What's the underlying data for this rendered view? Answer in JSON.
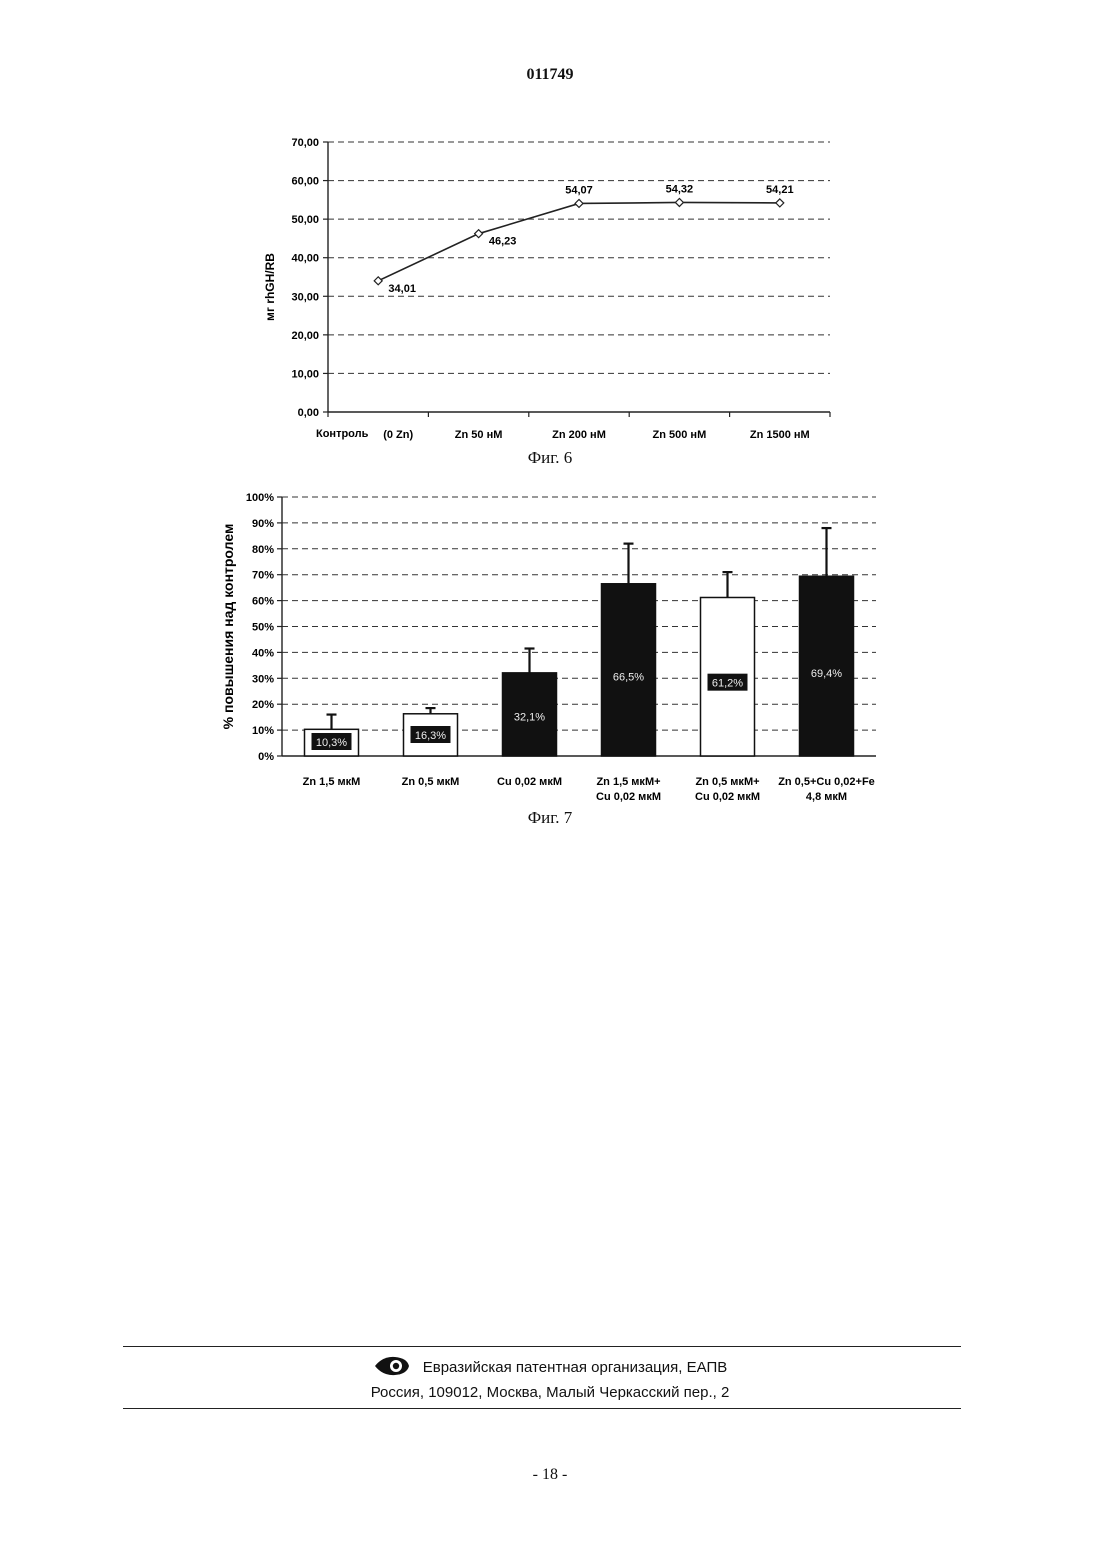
{
  "header": {
    "doc_number": "011749"
  },
  "chart_data": [
    {
      "type": "line",
      "caption": "Фиг. 6",
      "ylabel": "мг rhGH/RB",
      "ylim": [
        0,
        70
      ],
      "yticks": [
        "0,00",
        "10,00",
        "20,00",
        "30,00",
        "40,00",
        "50,00",
        "60,00",
        "70,00"
      ],
      "categories": [
        "Контроль (0 Zn)",
        "Zn 50 нМ",
        "Zn 200 нМ",
        "Zn 500 нМ",
        "Zn 1500 нМ"
      ],
      "category_labels": [
        "Контроль",
        "(0 Zn)",
        "Zn 50 нМ",
        "Zn 200 нМ",
        "Zn 500 нМ",
        "Zn 1500 нМ"
      ],
      "values": [
        34.01,
        46.23,
        54.07,
        54.32,
        54.21
      ],
      "data_labels": [
        "34,01",
        "46,23",
        "54,07",
        "54,32",
        "54,21"
      ],
      "grid": true,
      "color": "#222222"
    },
    {
      "type": "bar",
      "caption": "Фиг. 7",
      "ylabel": "% повышения над контролем",
      "ylim": [
        0,
        100
      ],
      "yticks": [
        "0%",
        "10%",
        "20%",
        "30%",
        "40%",
        "50%",
        "60%",
        "70%",
        "80%",
        "90%",
        "100%"
      ],
      "categories": [
        "Zn 1,5 мкМ",
        "Zn 0,5 мкМ",
        "Cu 0,02 мкМ",
        "Zn 1,5 мкМ+ Cu 0,02 мкМ",
        "Zn 0,5 мкМ+ Cu 0,02 мкМ",
        "Zn 0,5+Cu 0,02+Fe 4,8 мкМ"
      ],
      "category_lines": [
        [
          "Zn 1,5 мкМ"
        ],
        [
          "Zn 0,5 мкМ"
        ],
        [
          "Cu 0,02 мкМ"
        ],
        [
          "Zn 1,5 мкМ+",
          "Cu 0,02 мкМ"
        ],
        [
          "Zn 0,5 мкМ+",
          "Cu 0,02 мкМ"
        ],
        [
          "Zn 0,5+Cu 0,02+Fe",
          "4,8 мкМ"
        ]
      ],
      "values": [
        10.3,
        16.3,
        32.1,
        66.5,
        61.2,
        69.4
      ],
      "error_upper": [
        16,
        18.5,
        41.5,
        82,
        71,
        88
      ],
      "data_labels": [
        "10,3%",
        "16,3%",
        "32,1%",
        "66,5%",
        "61,2%",
        "69,4%"
      ],
      "fills": [
        "white",
        "white",
        "black",
        "black",
        "white",
        "black"
      ],
      "grid": true
    }
  ],
  "footer": {
    "org": "Евразийская патентная организация, ЕАПВ",
    "address": "Россия, 109012, Москва, Малый Черкасский пер., 2",
    "page": "- 18 -"
  }
}
